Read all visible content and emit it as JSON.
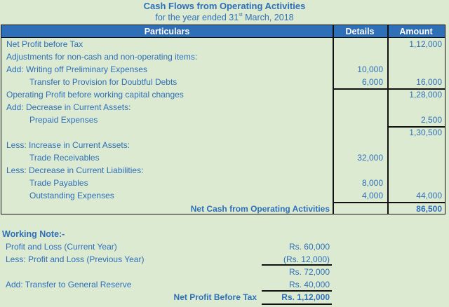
{
  "title": "Cash Flows from Operating Activities",
  "subtitle": {
    "prefix": "for the year ended 31",
    "sup": "st",
    "suffix": " March, 2018"
  },
  "table": {
    "headers": [
      "Particulars",
      "Details",
      "Amount"
    ],
    "rows": [
      {
        "particulars": "Net Profit before Tax",
        "indent": 0,
        "details": "",
        "amount": "1,12,000"
      },
      {
        "particulars": "Adjustments for non-cash and non-operating items:",
        "indent": 0,
        "details": "",
        "amount": ""
      },
      {
        "particulars": "Add: Writing off Preliminary Expenses",
        "indent": 0,
        "details": "10,000",
        "amount": ""
      },
      {
        "particulars": "Transfer to Provision for Doubtful Debts",
        "indent": 1,
        "details": "6,000",
        "amount": "16,000"
      },
      {
        "particulars": "Operating Profit before working capital changes",
        "indent": 0,
        "details": "",
        "amount": "1,28,000"
      },
      {
        "particulars": "Add: Decrease in Current Assets:",
        "indent": 0,
        "details": "",
        "amount": ""
      },
      {
        "particulars": "Prepaid Expenses",
        "indent": 1,
        "details": "",
        "amount": "2,500"
      },
      {
        "particulars": "",
        "indent": 0,
        "details": "",
        "amount": "1,30,500"
      },
      {
        "particulars": "Less: Increase in Current Assets:",
        "indent": 0,
        "details": "",
        "amount": ""
      },
      {
        "particulars": "Trade Receivables",
        "indent": 1,
        "details": "32,000",
        "amount": ""
      },
      {
        "particulars": "Less: Decrease in Current Liabilities:",
        "indent": 0,
        "details": "",
        "amount": ""
      },
      {
        "particulars": "Trade Payables",
        "indent": 1,
        "details": "8,000",
        "amount": ""
      },
      {
        "particulars": "Outstanding Expenses",
        "indent": 1,
        "details": "4,000",
        "amount": "44,000"
      }
    ],
    "total": {
      "label": "Net Cash from Operating Activities",
      "amount": "86,500"
    }
  },
  "working_note": {
    "heading": "Working Note:-",
    "rows": [
      {
        "label": "Profit and Loss (Current Year)",
        "value": "Rs. 60,000"
      },
      {
        "label": "Less: Profit and Loss (Previous Year)",
        "value": "(Rs. 12,000)"
      },
      {
        "label": "",
        "value": "Rs. 72,000"
      },
      {
        "label": "Add: Transfer to General Reserve",
        "value": "Rs. 40,000"
      }
    ],
    "total": {
      "label": "Net Profit Before Tax",
      "value": "Rs. 1,12,000"
    }
  }
}
